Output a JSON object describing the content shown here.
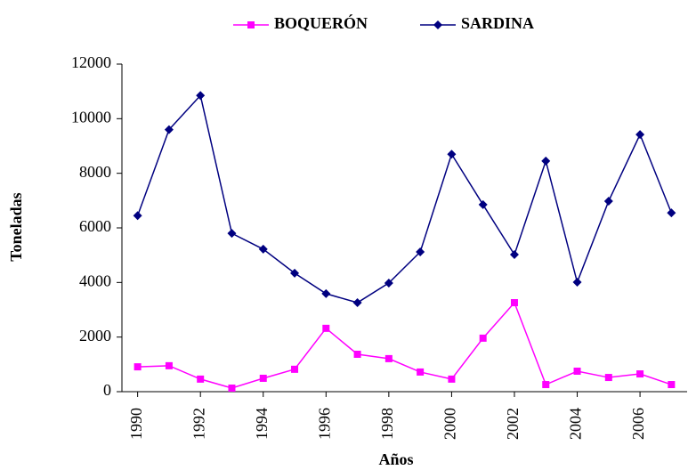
{
  "chart_data": {
    "type": "line",
    "x": [
      1990,
      1991,
      1992,
      1993,
      1994,
      1995,
      1996,
      1997,
      1998,
      1999,
      2000,
      2001,
      2002,
      2003,
      2004,
      2005,
      2006,
      2007
    ],
    "series": [
      {
        "name": "BOQUERÓN",
        "color": "#ff00ff",
        "marker": "square",
        "values": [
          910,
          950,
          460,
          130,
          490,
          820,
          2320,
          1370,
          1210,
          720,
          460,
          1960,
          3260,
          260,
          750,
          520,
          650,
          260
        ]
      },
      {
        "name": "SARDINA",
        "color": "#000080",
        "marker": "diamond",
        "values": [
          6450,
          9600,
          10850,
          5800,
          5220,
          4340,
          3590,
          3260,
          3980,
          5120,
          8700,
          6850,
          5020,
          8450,
          4010,
          6980,
          9420,
          6550
        ]
      }
    ],
    "xlabel": "Años",
    "ylabel": "Toneladas",
    "xlim": [
      1989.5,
      2007.5
    ],
    "xticks": [
      1990,
      1992,
      1994,
      1996,
      1998,
      2000,
      2002,
      2004,
      2006
    ],
    "ylim": [
      0,
      12000
    ],
    "yticks": [
      0,
      2000,
      4000,
      6000,
      8000,
      10000,
      12000
    ],
    "legend": "top",
    "grid": false
  }
}
